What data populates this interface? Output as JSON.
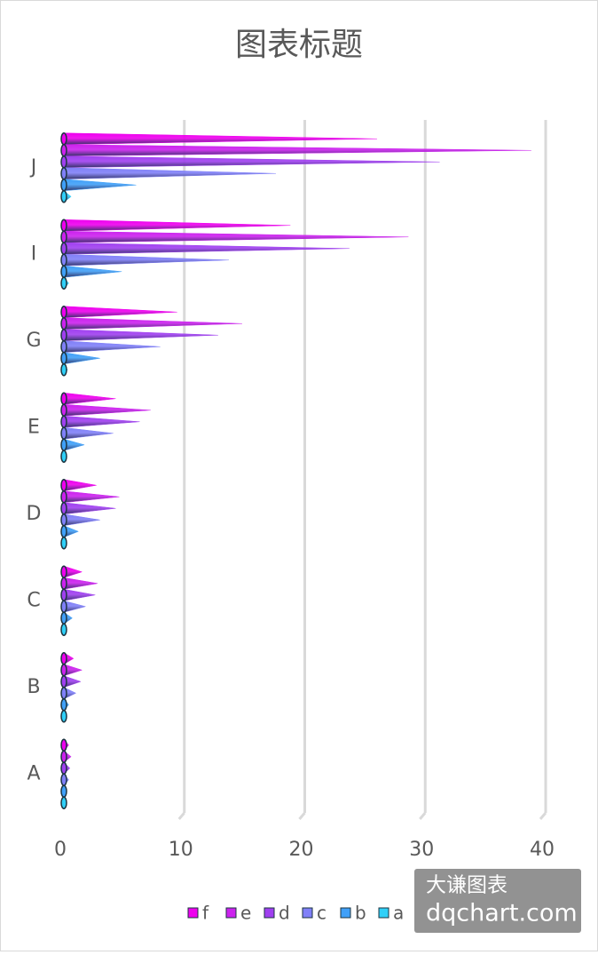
{
  "chart_data": {
    "type": "cone-bar",
    "title": "图表标题",
    "categories": [
      "A",
      "B",
      "C",
      "D",
      "E",
      "G",
      "I",
      "J"
    ],
    "series": [
      {
        "name": "f",
        "color": "#ee00ee",
        "values": [
          0.4,
          0.8,
          1.5,
          2.7,
          4.3,
          9.4,
          18.8,
          26
        ]
      },
      {
        "name": "e",
        "color": "#cc22ee",
        "values": [
          0.6,
          1.5,
          2.8,
          4.6,
          7.2,
          14.8,
          28.6,
          38.8
        ]
      },
      {
        "name": "d",
        "color": "#a040f0",
        "values": [
          0.5,
          1.4,
          2.6,
          4.3,
          6.3,
          12.8,
          23.7,
          31.2
        ]
      },
      {
        "name": "c",
        "color": "#8080f8",
        "values": [
          0.4,
          1,
          1.8,
          3,
          4.1,
          8,
          13.7,
          17.6
        ]
      },
      {
        "name": "b",
        "color": "#40a0f8",
        "values": [
          0.2,
          0.4,
          0.7,
          1.2,
          1.7,
          3,
          4.8,
          6
        ]
      },
      {
        "name": "a",
        "color": "#30d0f8",
        "values": [
          0.1,
          0.1,
          0.1,
          0.1,
          0.1,
          0.3,
          0.4,
          0.6
        ]
      }
    ],
    "xlim": [
      0,
      40
    ],
    "xticks": [
      0,
      10,
      20,
      30,
      40
    ],
    "grid": true,
    "legend": "bottom",
    "watermark": [
      "大谦图表",
      "dqchart.com"
    ]
  }
}
